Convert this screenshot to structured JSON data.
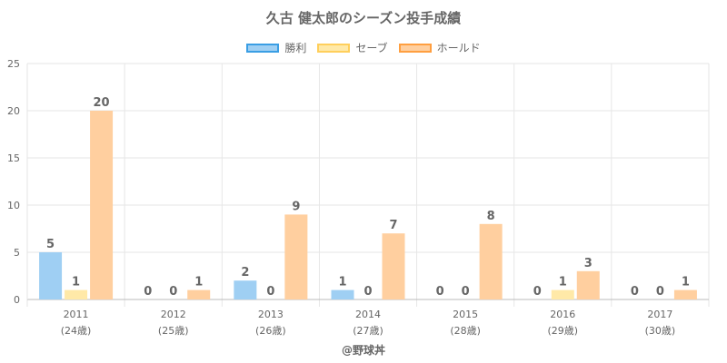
{
  "header": {
    "title": "久古 健太郎のシーズン投手成績"
  },
  "footer": {
    "credit": "@野球丼"
  },
  "chart_data": {
    "type": "bar",
    "title": "久古 健太郎のシーズン投手成績",
    "categories": [
      "2011",
      "2012",
      "2013",
      "2014",
      "2015",
      "2016",
      "2017"
    ],
    "sublabels": [
      "(24歳)",
      "(25歳)",
      "(26歳)",
      "(27歳)",
      "(28歳)",
      "(29歳)",
      "(30歳)"
    ],
    "ylim": [
      0,
      25
    ],
    "yticks": [
      0,
      5,
      10,
      15,
      20,
      25
    ],
    "grid": true,
    "legend_position": "top-center",
    "series": [
      {
        "name": "勝利",
        "values": [
          5,
          0,
          2,
          1,
          0,
          0,
          0
        ],
        "color": "#9fcff3",
        "border": "#3a9ee4"
      },
      {
        "name": "セーブ",
        "values": [
          1,
          0,
          0,
          0,
          0,
          1,
          0
        ],
        "color": "#ffe9a8",
        "border": "#ffcf5c"
      },
      {
        "name": "ホールド",
        "values": [
          20,
          1,
          9,
          7,
          8,
          3,
          1
        ],
        "color": "#ffcf9f",
        "border": "#ff9f40"
      }
    ]
  }
}
